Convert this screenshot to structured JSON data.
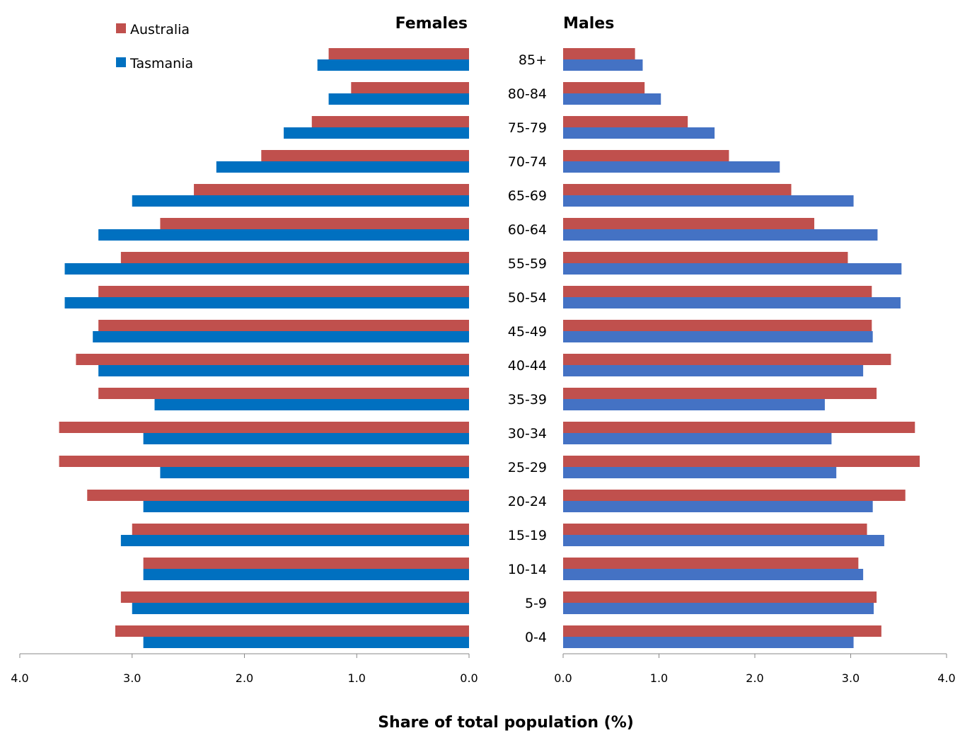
{
  "chart_data": {
    "type": "bar",
    "orientation": "horizontal",
    "layout": "population-pyramid",
    "xlabel": "Share of total population (%)",
    "xlim": [
      0,
      4
    ],
    "xticks": [
      "4.0",
      "3.0",
      "2.0",
      "1.0",
      "0.0",
      "0.0",
      "1.0",
      "2.0",
      "3.0",
      "4.0"
    ],
    "categories": [
      "0-4",
      "5-9",
      "10-14",
      "15-19",
      "20-24",
      "25-29",
      "30-34",
      "35-39",
      "40-44",
      "45-49",
      "50-54",
      "55-59",
      "60-64",
      "65-69",
      "70-74",
      "75-79",
      "80-84",
      "85+"
    ],
    "legend": {
      "placement": "top-left",
      "entries": [
        {
          "label": "Australia",
          "color": "#c0504d"
        },
        {
          "label": "Tasmania",
          "color": "#0070c0"
        }
      ]
    },
    "panels": [
      {
        "title": "Females",
        "direction": "left",
        "series": [
          {
            "name": "Australia",
            "color": "#c0504d",
            "values": [
              3.15,
              3.1,
              2.9,
              3.0,
              3.4,
              3.65,
              3.65,
              3.3,
              3.5,
              3.3,
              3.3,
              3.1,
              2.75,
              2.45,
              1.85,
              1.4,
              1.05,
              1.25
            ]
          },
          {
            "name": "Tasmania",
            "color": "#0070c0",
            "values": [
              2.9,
              3.0,
              2.9,
              3.1,
              2.9,
              2.75,
              2.9,
              2.8,
              3.3,
              3.35,
              3.6,
              3.6,
              3.3,
              3.0,
              2.25,
              1.65,
              1.25,
              1.35
            ]
          }
        ]
      },
      {
        "title": "Males",
        "direction": "right",
        "series": [
          {
            "name": "Australia",
            "color": "#c0504d",
            "values": [
              3.32,
              3.27,
              3.08,
              3.17,
              3.57,
              3.72,
              3.67,
              3.27,
              3.42,
              3.22,
              3.22,
              2.97,
              2.62,
              2.38,
              1.73,
              1.3,
              0.85,
              0.75
            ]
          },
          {
            "name": "Tasmania",
            "color": "#4472c4",
            "values": [
              3.03,
              3.24,
              3.13,
              3.35,
              3.23,
              2.85,
              2.8,
              2.73,
              3.13,
              3.23,
              3.52,
              3.53,
              3.28,
              3.03,
              2.26,
              1.58,
              1.02,
              0.83
            ]
          }
        ]
      }
    ]
  }
}
